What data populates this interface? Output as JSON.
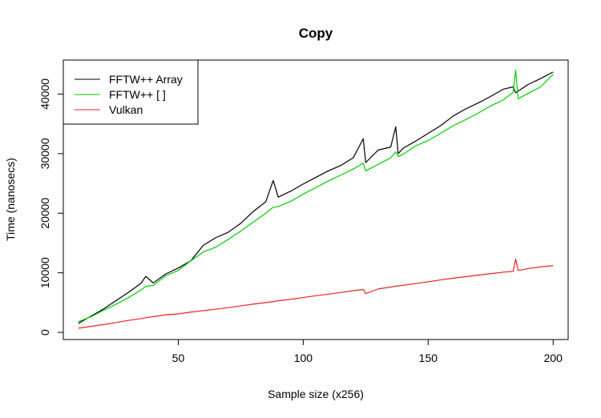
{
  "chart_data": {
    "type": "line",
    "title": "Copy",
    "xlabel": "Sample size (x256)",
    "ylabel": "Time (nanosecs)",
    "xlim": [
      4,
      206
    ],
    "ylim": [
      -1200,
      45700
    ],
    "x_ticks": [
      50,
      100,
      150,
      200
    ],
    "x_tick_labels": [
      "50",
      "100",
      "150",
      "200"
    ],
    "y_ticks": [
      0,
      10000,
      20000,
      30000,
      40000
    ],
    "y_tick_labels": [
      "0",
      "10000",
      "20000",
      "30000",
      "40000"
    ],
    "grid": false,
    "legend_position": "top-left",
    "x": [
      10,
      15,
      20,
      25,
      30,
      35,
      37,
      40,
      45,
      50,
      55,
      60,
      65,
      70,
      75,
      80,
      85,
      88,
      90,
      95,
      100,
      105,
      110,
      115,
      120,
      124,
      125,
      130,
      135,
      137,
      138,
      140,
      145,
      150,
      155,
      160,
      165,
      170,
      175,
      180,
      184,
      185,
      186,
      190,
      195,
      200
    ],
    "series": [
      {
        "name": "FFTW++ Array",
        "color": "#000000",
        "values": [
          1500,
          2700,
          3900,
          5300,
          6700,
          8200,
          9400,
          8300,
          9800,
          10800,
          12000,
          14600,
          15900,
          16800,
          18300,
          20300,
          21900,
          25500,
          22700,
          23700,
          24900,
          26000,
          27100,
          28000,
          29300,
          32500,
          28500,
          30600,
          31100,
          34500,
          30000,
          30900,
          32100,
          33400,
          34700,
          36300,
          37500,
          38500,
          39600,
          40800,
          41200,
          40200,
          40500,
          41600,
          42600,
          43700
        ]
      },
      {
        "name": "FFTW++ [ ]",
        "color": "#00cd00",
        "values": [
          1800,
          2600,
          3700,
          4700,
          5800,
          7100,
          7700,
          7900,
          9500,
          10400,
          12000,
          13500,
          14300,
          15600,
          17000,
          18500,
          20000,
          21000,
          21100,
          22000,
          23200,
          24300,
          25400,
          26400,
          27400,
          28400,
          27100,
          28200,
          29300,
          30300,
          29500,
          29900,
          31300,
          32200,
          33400,
          34700,
          35700,
          36800,
          38000,
          39000,
          40300,
          44000,
          39200,
          40100,
          41200,
          43300
        ]
      },
      {
        "name": "Vulkan",
        "color": "#ee2222",
        "values": [
          700,
          1000,
          1300,
          1650,
          2000,
          2300,
          2450,
          2650,
          2950,
          3100,
          3400,
          3650,
          3900,
          4150,
          4450,
          4750,
          5000,
          5150,
          5300,
          5550,
          5850,
          6150,
          6400,
          6700,
          7000,
          7200,
          6500,
          7300,
          7600,
          7750,
          7800,
          7900,
          8200,
          8500,
          8800,
          9100,
          9350,
          9600,
          9850,
          10100,
          10250,
          12300,
          10400,
          10700,
          11000,
          11200
        ]
      }
    ]
  }
}
